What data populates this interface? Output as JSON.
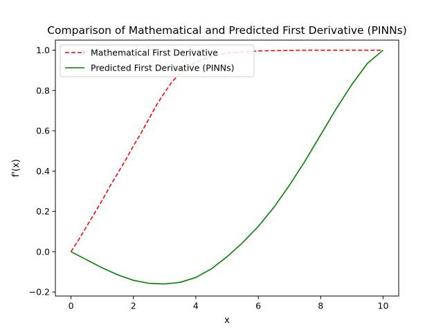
{
  "chart_data": {
    "type": "line",
    "title": "Comparison of Mathematical and Predicted First Derivative (PINNs)",
    "xlabel": "x",
    "ylabel": "f'(x)",
    "xlim": [
      -0.5,
      10.5
    ],
    "ylim": [
      -0.22,
      1.05
    ],
    "xticks": [
      0,
      2,
      4,
      6,
      8,
      10
    ],
    "xtick_labels": [
      "0",
      "2",
      "4",
      "6",
      "8",
      "10"
    ],
    "yticks": [
      -0.2,
      0.0,
      0.2,
      0.4,
      0.6,
      0.8,
      1.0
    ],
    "ytick_labels": [
      "−0.2",
      "0.0",
      "0.2",
      "0.4",
      "0.6",
      "0.8",
      "1.0"
    ],
    "grid": false,
    "legend_position": "top-left",
    "series": [
      {
        "name": "Mathematical First Derivative",
        "color": "#ff0000",
        "style": "dashed",
        "x": [
          0,
          0.25,
          0.5,
          0.75,
          1.0,
          1.25,
          1.5,
          1.75,
          2.0,
          2.25,
          2.5,
          2.75,
          3.0,
          3.25,
          3.5,
          3.75,
          4.0,
          4.25,
          4.5,
          4.75,
          5.0,
          5.5,
          6.0,
          6.5,
          7.0,
          7.5,
          8.0,
          8.5,
          9.0,
          9.5,
          10.0
        ],
        "y": [
          0.0,
          0.06,
          0.125,
          0.19,
          0.255,
          0.325,
          0.39,
          0.455,
          0.525,
          0.59,
          0.66,
          0.73,
          0.79,
          0.845,
          0.885,
          0.915,
          0.94,
          0.955,
          0.968,
          0.978,
          0.985,
          0.992,
          0.996,
          0.998,
          0.999,
          1.0,
          1.0,
          1.0,
          1.0,
          1.0,
          1.0
        ]
      },
      {
        "name": "Predicted First Derivative (PINNs)",
        "color": "#008000",
        "style": "solid",
        "x": [
          0,
          0.5,
          1.0,
          1.5,
          2.0,
          2.5,
          3.0,
          3.5,
          4.0,
          4.5,
          5.0,
          5.5,
          6.0,
          6.5,
          7.0,
          7.5,
          8.0,
          8.5,
          9.0,
          9.5,
          10.0
        ],
        "y": [
          0.0,
          -0.04,
          -0.08,
          -0.115,
          -0.142,
          -0.157,
          -0.16,
          -0.152,
          -0.128,
          -0.085,
          -0.025,
          0.045,
          0.125,
          0.22,
          0.33,
          0.45,
          0.58,
          0.71,
          0.83,
          0.935,
          1.0
        ]
      }
    ]
  }
}
